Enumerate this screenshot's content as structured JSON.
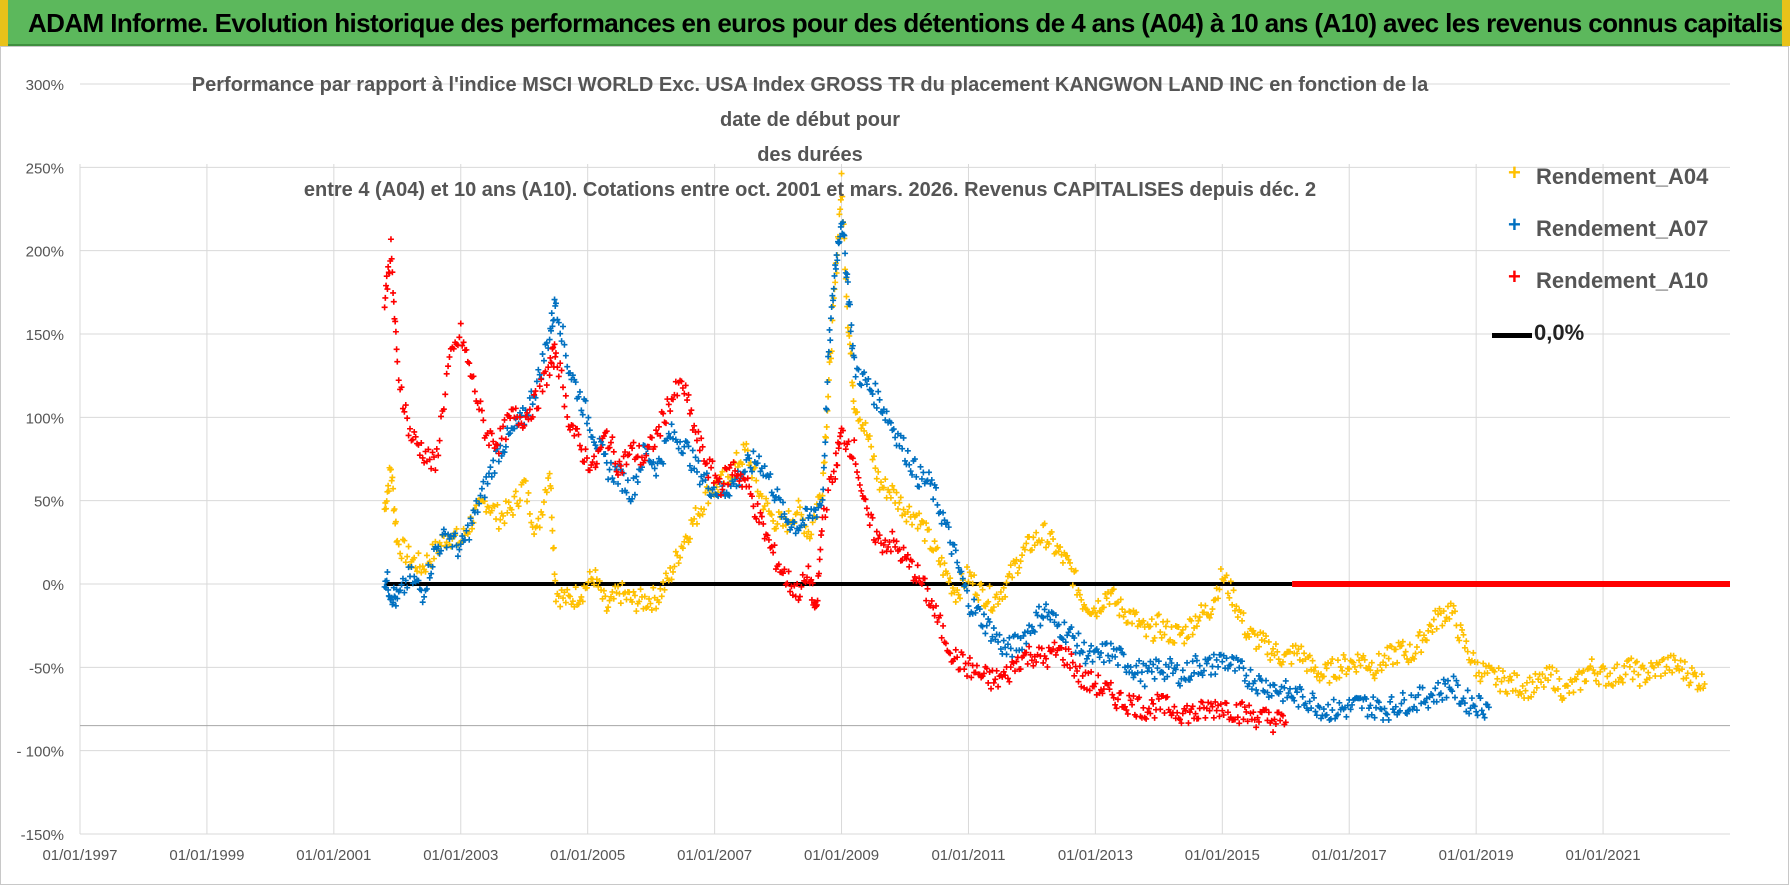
{
  "banner": {
    "title": "ADAM Informe. Evolution historique des performances en euros pour des détentions de 4 ans (A04) à 10 ans (A10) avec les revenus connus capitalisés"
  },
  "colors": {
    "a04": "#ffc000",
    "a07": "#0070c0",
    "a10": "#ff0000",
    "zero": "#000000",
    "grid": "#d9d9d9"
  },
  "chart_data": {
    "type": "scatter",
    "title_lines": [
      "Performance par rapport à l'indice MSCI WORLD Exc. USA Index GROSS TR  du placement KANGWON LAND INC en fonction de la date de début pour",
      "des durées",
      "entre 4 (A04) et 10 ans (A10).  Cotations entre oct. 2001 et mars. 2026. Revenus CAPITALISES depuis déc. 2"
    ],
    "y_ticks": [
      "300%",
      "250%",
      "200%",
      "150%",
      "100%",
      "50%",
      "0%",
      "-50%",
      "- 100%",
      "-150%"
    ],
    "y_tick_values": [
      300,
      250,
      200,
      150,
      100,
      50,
      0,
      -50,
      -100,
      -150
    ],
    "x_ticks": [
      "01/01/1997",
      "01/01/1999",
      "01/01/2001",
      "01/01/2003",
      "01/01/2005",
      "01/01/2007",
      "01/01/2009",
      "01/01/2011",
      "01/01/2013",
      "01/01/2015",
      "01/01/2017",
      "01/01/2019",
      "01/01/2021"
    ],
    "x_range": [
      1997.0,
      2023.0
    ],
    "ylim": [
      -150,
      300
    ],
    "legend": [
      {
        "key": "a04",
        "label": "Rendement_A04",
        "marker": "+"
      },
      {
        "key": "a07",
        "label": "Rendement_A07",
        "marker": "+"
      },
      {
        "key": "a10",
        "label": "Rendement_A10",
        "marker": "+"
      },
      {
        "key": "zero",
        "label": "0,0%",
        "marker": "line"
      }
    ],
    "series": [
      {
        "name": "Rendement_A04",
        "key": "a04",
        "points": [
          [
            2001.8,
            45
          ],
          [
            2001.9,
            70
          ],
          [
            2002.0,
            25
          ],
          [
            2002.2,
            15
          ],
          [
            2002.4,
            10
          ],
          [
            2002.6,
            20
          ],
          [
            2002.8,
            30
          ],
          [
            2003.0,
            25
          ],
          [
            2003.2,
            40
          ],
          [
            2003.4,
            50
          ],
          [
            2003.6,
            40
          ],
          [
            2003.8,
            45
          ],
          [
            2004.0,
            60
          ],
          [
            2004.2,
            30
          ],
          [
            2004.4,
            70
          ],
          [
            2004.5,
            -5
          ],
          [
            2004.7,
            -10
          ],
          [
            2004.9,
            -5
          ],
          [
            2005.1,
            5
          ],
          [
            2005.3,
            -15
          ],
          [
            2005.5,
            -5
          ],
          [
            2005.7,
            -10
          ],
          [
            2005.9,
            -10
          ],
          [
            2006.1,
            -8
          ],
          [
            2006.3,
            5
          ],
          [
            2006.5,
            25
          ],
          [
            2006.7,
            40
          ],
          [
            2006.9,
            55
          ],
          [
            2007.1,
            60
          ],
          [
            2007.3,
            70
          ],
          [
            2007.5,
            80
          ],
          [
            2007.7,
            55
          ],
          [
            2007.9,
            40
          ],
          [
            2008.1,
            35
          ],
          [
            2008.3,
            45
          ],
          [
            2008.5,
            30
          ],
          [
            2008.7,
            60
          ],
          [
            2008.8,
            120
          ],
          [
            2008.9,
            180
          ],
          [
            2009.0,
            240
          ],
          [
            2009.1,
            160
          ],
          [
            2009.2,
            110
          ],
          [
            2009.4,
            90
          ],
          [
            2009.6,
            60
          ],
          [
            2009.8,
            55
          ],
          [
            2010.0,
            45
          ],
          [
            2010.2,
            40
          ],
          [
            2010.4,
            25
          ],
          [
            2010.6,
            10
          ],
          [
            2010.8,
            -5
          ],
          [
            2011.0,
            5
          ],
          [
            2011.2,
            -5
          ],
          [
            2011.4,
            -10
          ],
          [
            2011.6,
            0
          ],
          [
            2011.8,
            15
          ],
          [
            2012.0,
            25
          ],
          [
            2012.2,
            30
          ],
          [
            2012.4,
            20
          ],
          [
            2012.6,
            10
          ],
          [
            2012.8,
            -10
          ],
          [
            2013.0,
            -15
          ],
          [
            2013.2,
            -5
          ],
          [
            2013.4,
            -15
          ],
          [
            2013.6,
            -20
          ],
          [
            2013.8,
            -30
          ],
          [
            2014.0,
            -25
          ],
          [
            2014.2,
            -30
          ],
          [
            2014.4,
            -30
          ],
          [
            2014.6,
            -20
          ],
          [
            2014.8,
            -15
          ],
          [
            2015.0,
            5
          ],
          [
            2015.2,
            -10
          ],
          [
            2015.4,
            -30
          ],
          [
            2015.6,
            -35
          ],
          [
            2015.8,
            -40
          ],
          [
            2016.0,
            -45
          ],
          [
            2016.2,
            -40
          ],
          [
            2016.4,
            -50
          ],
          [
            2016.6,
            -55
          ],
          [
            2016.8,
            -50
          ],
          [
            2017.0,
            -48
          ],
          [
            2017.2,
            -45
          ],
          [
            2017.4,
            -50
          ],
          [
            2017.6,
            -45
          ],
          [
            2017.8,
            -40
          ],
          [
            2018.0,
            -42
          ],
          [
            2018.2,
            -30
          ],
          [
            2018.4,
            -20
          ],
          [
            2018.6,
            -15
          ],
          [
            2018.8,
            -35
          ],
          [
            2019.0,
            -50
          ],
          [
            2019.2,
            -55
          ],
          [
            2019.4,
            -58
          ],
          [
            2019.6,
            -60
          ],
          [
            2019.8,
            -62
          ],
          [
            2020.0,
            -60
          ],
          [
            2020.2,
            -55
          ],
          [
            2020.4,
            -65
          ],
          [
            2020.6,
            -60
          ],
          [
            2020.8,
            -50
          ],
          [
            2021.0,
            -55
          ],
          [
            2021.2,
            -55
          ],
          [
            2021.4,
            -50
          ],
          [
            2021.6,
            -55
          ],
          [
            2021.8,
            -52
          ],
          [
            2022.0,
            -48
          ],
          [
            2022.2,
            -50
          ],
          [
            2022.4,
            -55
          ],
          [
            2022.6,
            -60
          ]
        ]
      },
      {
        "name": "Rendement_A07",
        "key": "a07",
        "points": [
          [
            2001.8,
            5
          ],
          [
            2001.9,
            -5
          ],
          [
            2002.0,
            -10
          ],
          [
            2002.2,
            5
          ],
          [
            2002.4,
            -5
          ],
          [
            2002.6,
            20
          ],
          [
            2002.8,
            30
          ],
          [
            2003.0,
            20
          ],
          [
            2003.2,
            40
          ],
          [
            2003.4,
            60
          ],
          [
            2003.6,
            80
          ],
          [
            2003.8,
            90
          ],
          [
            2004.0,
            100
          ],
          [
            2004.2,
            120
          ],
          [
            2004.4,
            150
          ],
          [
            2004.5,
            170
          ],
          [
            2004.7,
            130
          ],
          [
            2004.9,
            110
          ],
          [
            2005.1,
            90
          ],
          [
            2005.3,
            70
          ],
          [
            2005.5,
            65
          ],
          [
            2005.7,
            55
          ],
          [
            2005.9,
            80
          ],
          [
            2006.1,
            70
          ],
          [
            2006.3,
            90
          ],
          [
            2006.5,
            85
          ],
          [
            2006.7,
            70
          ],
          [
            2006.9,
            60
          ],
          [
            2007.1,
            55
          ],
          [
            2007.3,
            60
          ],
          [
            2007.5,
            70
          ],
          [
            2007.7,
            75
          ],
          [
            2007.9,
            60
          ],
          [
            2008.1,
            40
          ],
          [
            2008.3,
            35
          ],
          [
            2008.5,
            40
          ],
          [
            2008.7,
            50
          ],
          [
            2008.8,
            140
          ],
          [
            2008.9,
            190
          ],
          [
            2009.0,
            220
          ],
          [
            2009.1,
            180
          ],
          [
            2009.2,
            130
          ],
          [
            2009.4,
            120
          ],
          [
            2009.6,
            110
          ],
          [
            2009.8,
            95
          ],
          [
            2010.0,
            80
          ],
          [
            2010.2,
            65
          ],
          [
            2010.4,
            60
          ],
          [
            2010.6,
            40
          ],
          [
            2010.8,
            15
          ],
          [
            2011.0,
            -10
          ],
          [
            2011.2,
            -20
          ],
          [
            2011.4,
            -30
          ],
          [
            2011.6,
            -40
          ],
          [
            2011.8,
            -35
          ],
          [
            2012.0,
            -25
          ],
          [
            2012.2,
            -15
          ],
          [
            2012.4,
            -25
          ],
          [
            2012.6,
            -30
          ],
          [
            2012.8,
            -40
          ],
          [
            2013.0,
            -45
          ],
          [
            2013.2,
            -40
          ],
          [
            2013.4,
            -45
          ],
          [
            2013.6,
            -50
          ],
          [
            2013.8,
            -55
          ],
          [
            2014.0,
            -50
          ],
          [
            2014.2,
            -52
          ],
          [
            2014.4,
            -55
          ],
          [
            2014.6,
            -48
          ],
          [
            2014.8,
            -50
          ],
          [
            2015.0,
            -45
          ],
          [
            2015.2,
            -50
          ],
          [
            2015.4,
            -55
          ],
          [
            2015.6,
            -60
          ],
          [
            2015.8,
            -62
          ],
          [
            2016.0,
            -65
          ],
          [
            2016.2,
            -68
          ],
          [
            2016.4,
            -70
          ],
          [
            2016.6,
            -75
          ],
          [
            2016.8,
            -76
          ],
          [
            2017.0,
            -74
          ],
          [
            2017.2,
            -72
          ],
          [
            2017.4,
            -74
          ],
          [
            2017.6,
            -75
          ],
          [
            2017.8,
            -72
          ],
          [
            2018.0,
            -70
          ],
          [
            2018.2,
            -68
          ],
          [
            2018.4,
            -65
          ],
          [
            2018.6,
            -60
          ],
          [
            2018.8,
            -70
          ],
          [
            2019.0,
            -72
          ],
          [
            2019.2,
            -74
          ]
        ]
      },
      {
        "name": "Rendement_A10",
        "key": "a10",
        "points": [
          [
            2001.8,
            170
          ],
          [
            2001.9,
            200
          ],
          [
            2002.0,
            130
          ],
          [
            2002.2,
            90
          ],
          [
            2002.4,
            80
          ],
          [
            2002.6,
            70
          ],
          [
            2002.8,
            130
          ],
          [
            2003.0,
            150
          ],
          [
            2003.2,
            120
          ],
          [
            2003.4,
            90
          ],
          [
            2003.6,
            85
          ],
          [
            2003.8,
            100
          ],
          [
            2004.0,
            100
          ],
          [
            2004.2,
            110
          ],
          [
            2004.4,
            130
          ],
          [
            2004.5,
            140
          ],
          [
            2004.7,
            100
          ],
          [
            2004.9,
            80
          ],
          [
            2005.1,
            70
          ],
          [
            2005.3,
            90
          ],
          [
            2005.5,
            70
          ],
          [
            2005.7,
            80
          ],
          [
            2005.9,
            75
          ],
          [
            2006.1,
            90
          ],
          [
            2006.3,
            110
          ],
          [
            2006.5,
            120
          ],
          [
            2006.7,
            90
          ],
          [
            2006.9,
            70
          ],
          [
            2007.1,
            60
          ],
          [
            2007.3,
            70
          ],
          [
            2007.5,
            60
          ],
          [
            2007.7,
            40
          ],
          [
            2007.9,
            20
          ],
          [
            2008.1,
            5
          ],
          [
            2008.3,
            -5
          ],
          [
            2008.5,
            5
          ],
          [
            2008.6,
            -20
          ],
          [
            2008.7,
            40
          ],
          [
            2008.9,
            70
          ],
          [
            2009.0,
            90
          ],
          [
            2009.2,
            80
          ],
          [
            2009.4,
            40
          ],
          [
            2009.6,
            25
          ],
          [
            2009.8,
            25
          ],
          [
            2010.0,
            15
          ],
          [
            2010.2,
            5
          ],
          [
            2010.4,
            -10
          ],
          [
            2010.6,
            -30
          ],
          [
            2010.8,
            -45
          ],
          [
            2011.0,
            -50
          ],
          [
            2011.2,
            -55
          ],
          [
            2011.4,
            -58
          ],
          [
            2011.6,
            -55
          ],
          [
            2011.8,
            -45
          ],
          [
            2012.0,
            -42
          ],
          [
            2012.2,
            -45
          ],
          [
            2012.4,
            -40
          ],
          [
            2012.6,
            -45
          ],
          [
            2012.8,
            -58
          ],
          [
            2013.0,
            -60
          ],
          [
            2013.2,
            -65
          ],
          [
            2013.4,
            -70
          ],
          [
            2013.6,
            -72
          ],
          [
            2013.8,
            -75
          ],
          [
            2014.0,
            -73
          ],
          [
            2014.2,
            -75
          ],
          [
            2014.4,
            -77
          ],
          [
            2014.6,
            -78
          ],
          [
            2014.8,
            -75
          ],
          [
            2015.0,
            -73
          ],
          [
            2015.2,
            -76
          ],
          [
            2015.4,
            -78
          ],
          [
            2015.6,
            -80
          ],
          [
            2015.8,
            -82
          ],
          [
            2016.0,
            -83
          ]
        ]
      }
    ],
    "zero_line": {
      "label": "0,0%",
      "from": 2001.8,
      "to": 2016.1
    },
    "zero_red": {
      "from": 2016.1,
      "to": 2023.0
    }
  }
}
